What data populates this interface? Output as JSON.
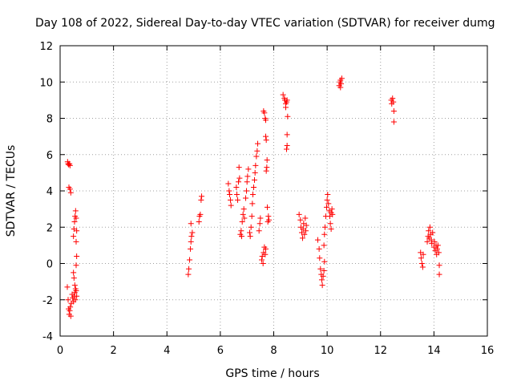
{
  "chart_data": {
    "type": "scatter",
    "title": "Day 108 of 2022, Sidereal Day-to-day VTEC variation (SDTVAR) for receiver dumg",
    "xlabel": "GPS time / hours",
    "ylabel": "SDTVAR / TECUs",
    "xlim": [
      0,
      16
    ],
    "ylim": [
      -4,
      12
    ],
    "xticks": [
      "0",
      "2",
      "4",
      "6",
      "8",
      "10",
      "12",
      "14",
      "16"
    ],
    "yticks": [
      "-4",
      "-2",
      "0",
      "2",
      "4",
      "6",
      "8",
      "10",
      "12"
    ],
    "grid": true,
    "marker": "+",
    "color": "#ff0000",
    "series": [
      {
        "name": "SDTVAR",
        "points": [
          [
            0.28,
            5.6
          ],
          [
            0.3,
            5.5
          ],
          [
            0.32,
            5.45
          ],
          [
            0.35,
            5.5
          ],
          [
            0.37,
            5.4
          ],
          [
            0.33,
            4.2
          ],
          [
            0.37,
            4.1
          ],
          [
            0.4,
            3.9
          ],
          [
            0.27,
            -1.3
          ],
          [
            0.3,
            -2.0
          ],
          [
            0.32,
            -2.5
          ],
          [
            0.34,
            -2.8
          ],
          [
            0.36,
            -2.6
          ],
          [
            0.38,
            -2.4
          ],
          [
            0.4,
            -2.9
          ],
          [
            0.42,
            -2.2
          ],
          [
            0.45,
            -1.7
          ],
          [
            0.47,
            -1.9
          ],
          [
            0.5,
            -2.1
          ],
          [
            0.52,
            -1.8
          ],
          [
            0.55,
            -1.6
          ],
          [
            0.57,
            -2.0
          ],
          [
            0.6,
            -1.5
          ],
          [
            0.62,
            -1.8
          ],
          [
            0.5,
            -0.5
          ],
          [
            0.52,
            -0.8
          ],
          [
            0.55,
            -1.2
          ],
          [
            0.58,
            -1.4
          ],
          [
            0.6,
            -0.1
          ],
          [
            0.62,
            0.4
          ],
          [
            0.5,
            1.5
          ],
          [
            0.52,
            1.9
          ],
          [
            0.54,
            2.3
          ],
          [
            0.56,
            2.6
          ],
          [
            0.58,
            2.9
          ],
          [
            0.6,
            2.5
          ],
          [
            0.62,
            1.8
          ],
          [
            0.6,
            1.2
          ],
          [
            4.8,
            -0.6
          ],
          [
            4.82,
            -0.3
          ],
          [
            4.85,
            0.2
          ],
          [
            4.88,
            0.8
          ],
          [
            4.9,
            1.2
          ],
          [
            4.92,
            1.5
          ],
          [
            4.95,
            1.7
          ],
          [
            4.9,
            2.2
          ],
          [
            5.2,
            2.3
          ],
          [
            5.22,
            2.6
          ],
          [
            5.25,
            2.7
          ],
          [
            5.28,
            3.5
          ],
          [
            5.3,
            3.7
          ],
          [
            6.3,
            4.4
          ],
          [
            6.33,
            4.0
          ],
          [
            6.35,
            3.8
          ],
          [
            6.38,
            3.5
          ],
          [
            6.4,
            3.2
          ],
          [
            6.6,
            4.2
          ],
          [
            6.62,
            3.8
          ],
          [
            6.65,
            3.5
          ],
          [
            6.68,
            4.5
          ],
          [
            6.7,
            5.3
          ],
          [
            6.72,
            4.7
          ],
          [
            6.75,
            1.6
          ],
          [
            6.78,
            1.8
          ],
          [
            6.8,
            1.5
          ],
          [
            6.82,
            2.3
          ],
          [
            6.85,
            2.7
          ],
          [
            6.88,
            3.0
          ],
          [
            6.9,
            2.5
          ],
          [
            6.95,
            3.6
          ],
          [
            6.98,
            4.0
          ],
          [
            7.0,
            4.5
          ],
          [
            7.02,
            4.8
          ],
          [
            7.05,
            5.2
          ],
          [
            7.1,
            1.7
          ],
          [
            7.12,
            1.5
          ],
          [
            7.15,
            2.0
          ],
          [
            7.18,
            2.6
          ],
          [
            7.2,
            3.3
          ],
          [
            7.22,
            3.8
          ],
          [
            7.25,
            4.2
          ],
          [
            7.28,
            4.6
          ],
          [
            7.3,
            5.0
          ],
          [
            7.32,
            5.4
          ],
          [
            7.35,
            5.9
          ],
          [
            7.38,
            6.2
          ],
          [
            7.4,
            6.6
          ],
          [
            7.45,
            1.8
          ],
          [
            7.48,
            2.2
          ],
          [
            7.5,
            2.5
          ],
          [
            7.55,
            0.2
          ],
          [
            7.57,
            0.4
          ],
          [
            7.6,
            0.0
          ],
          [
            7.62,
            0.6
          ],
          [
            7.65,
            0.9
          ],
          [
            7.68,
            0.5
          ],
          [
            7.7,
            0.8
          ],
          [
            7.62,
            8.4
          ],
          [
            7.65,
            8.3
          ],
          [
            7.68,
            8.0
          ],
          [
            7.7,
            7.9
          ],
          [
            7.72,
            6.8
          ],
          [
            7.7,
            7.0
          ],
          [
            7.72,
            5.1
          ],
          [
            7.74,
            5.3
          ],
          [
            7.75,
            5.7
          ],
          [
            7.78,
            2.3
          ],
          [
            7.8,
            2.6
          ],
          [
            7.82,
            2.4
          ],
          [
            7.76,
            3.1
          ],
          [
            8.35,
            9.3
          ],
          [
            8.4,
            9.1
          ],
          [
            8.42,
            9.0
          ],
          [
            8.45,
            8.8
          ],
          [
            8.48,
            8.9
          ],
          [
            8.5,
            9.0
          ],
          [
            8.45,
            8.6
          ],
          [
            8.52,
            8.1
          ],
          [
            8.5,
            7.1
          ],
          [
            8.5,
            6.5
          ],
          [
            8.48,
            6.3
          ],
          [
            8.95,
            2.7
          ],
          [
            9.0,
            2.4
          ],
          [
            9.02,
            2.0
          ],
          [
            9.05,
            1.7
          ],
          [
            9.08,
            1.4
          ],
          [
            9.1,
            1.9
          ],
          [
            9.12,
            2.2
          ],
          [
            9.15,
            1.6
          ],
          [
            9.18,
            2.5
          ],
          [
            9.2,
            1.8
          ],
          [
            9.22,
            2.1
          ],
          [
            9.65,
            1.3
          ],
          [
            9.7,
            0.8
          ],
          [
            9.72,
            0.3
          ],
          [
            9.75,
            -0.3
          ],
          [
            9.78,
            -0.6
          ],
          [
            9.8,
            -0.9
          ],
          [
            9.82,
            -1.2
          ],
          [
            9.85,
            -0.7
          ],
          [
            9.88,
            -0.4
          ],
          [
            9.9,
            0.1
          ],
          [
            9.88,
            1.0
          ],
          [
            9.9,
            1.6
          ],
          [
            9.92,
            2.0
          ],
          [
            9.95,
            2.6
          ],
          [
            9.98,
            3.1
          ],
          [
            10.0,
            3.5
          ],
          [
            10.02,
            3.8
          ],
          [
            10.05,
            3.3
          ],
          [
            10.08,
            2.9
          ],
          [
            10.1,
            2.6
          ],
          [
            10.12,
            2.2
          ],
          [
            10.15,
            2.8
          ],
          [
            10.18,
            3.0
          ],
          [
            10.2,
            2.7
          ],
          [
            10.15,
            1.9
          ],
          [
            10.45,
            9.8
          ],
          [
            10.48,
            10.0
          ],
          [
            10.5,
            10.1
          ],
          [
            10.52,
            9.9
          ],
          [
            10.55,
            10.2
          ],
          [
            10.5,
            9.7
          ],
          [
            12.4,
            9.0
          ],
          [
            12.42,
            8.8
          ],
          [
            12.45,
            9.1
          ],
          [
            12.48,
            8.9
          ],
          [
            12.5,
            8.4
          ],
          [
            12.5,
            7.8
          ],
          [
            13.5,
            0.6
          ],
          [
            13.52,
            0.3
          ],
          [
            13.55,
            0.0
          ],
          [
            13.58,
            -0.2
          ],
          [
            13.6,
            0.5
          ],
          [
            13.75,
            1.2
          ],
          [
            13.78,
            1.5
          ],
          [
            13.8,
            1.8
          ],
          [
            13.82,
            1.4
          ],
          [
            13.85,
            2.0
          ],
          [
            13.88,
            1.6
          ],
          [
            13.9,
            1.3
          ],
          [
            13.92,
            1.1
          ],
          [
            13.95,
            1.7
          ],
          [
            14.0,
            0.9
          ],
          [
            14.02,
            1.2
          ],
          [
            14.05,
            0.7
          ],
          [
            14.08,
            1.0
          ],
          [
            14.1,
            0.5
          ],
          [
            14.12,
            0.8
          ],
          [
            14.15,
            1.0
          ],
          [
            14.18,
            0.6
          ],
          [
            14.2,
            -0.1
          ],
          [
            14.2,
            -0.6
          ]
        ]
      }
    ]
  }
}
